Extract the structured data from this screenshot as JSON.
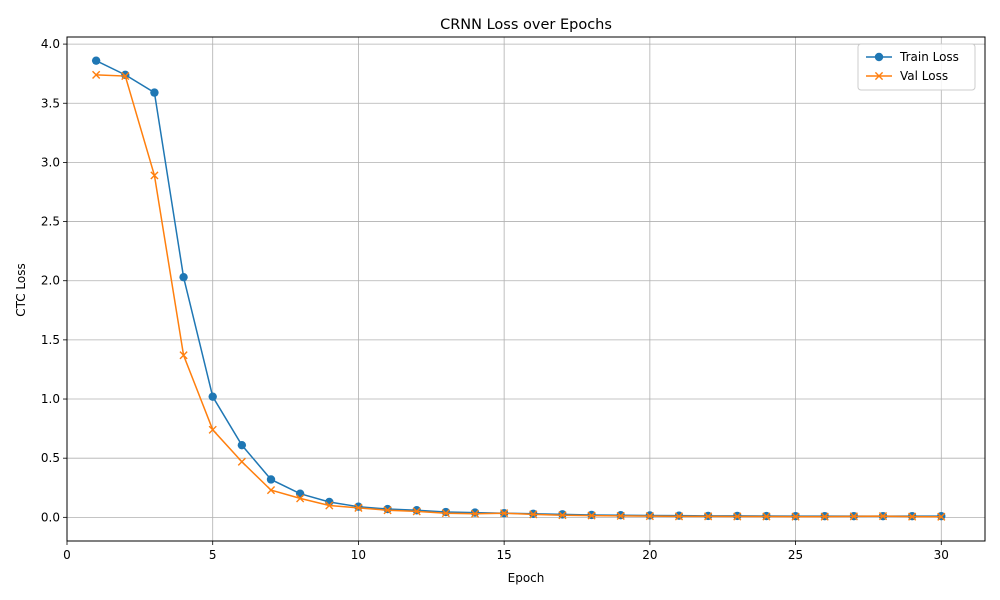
{
  "chart_data": {
    "type": "line",
    "title": "CRNN Loss over Epochs",
    "xlabel": "Epoch",
    "ylabel": "CTC Loss",
    "xlim": [
      0,
      31.5
    ],
    "ylim": [
      -0.2,
      4.06
    ],
    "xticks": [
      0,
      5,
      10,
      15,
      20,
      25,
      30
    ],
    "yticks": [
      0.0,
      0.5,
      1.0,
      1.5,
      2.0,
      2.5,
      3.0,
      3.5,
      4.0
    ],
    "ytick_labels": [
      "0.0",
      "0.5",
      "1.0",
      "1.5",
      "2.0",
      "2.5",
      "3.0",
      "3.5",
      "4.0"
    ],
    "grid": true,
    "legend_position": "top-right",
    "x": [
      1,
      2,
      3,
      4,
      5,
      6,
      7,
      8,
      9,
      10,
      11,
      12,
      13,
      14,
      15,
      16,
      17,
      18,
      19,
      20,
      21,
      22,
      23,
      24,
      25,
      26,
      27,
      28,
      29,
      30
    ],
    "series": [
      {
        "name": "Train Loss",
        "color": "#1f77b4",
        "marker": "circle",
        "values": [
          3.86,
          3.74,
          3.59,
          2.03,
          1.02,
          0.61,
          0.32,
          0.2,
          0.13,
          0.09,
          0.07,
          0.06,
          0.045,
          0.04,
          0.035,
          0.03,
          0.025,
          0.02,
          0.018,
          0.016,
          0.014,
          0.012,
          0.012,
          0.011,
          0.01,
          0.01,
          0.01,
          0.01,
          0.01,
          0.01
        ]
      },
      {
        "name": "Val Loss",
        "color": "#ff7f0e",
        "marker": "x",
        "values": [
          3.74,
          3.73,
          2.89,
          1.37,
          0.74,
          0.47,
          0.23,
          0.16,
          0.1,
          0.08,
          0.06,
          0.05,
          0.035,
          0.03,
          0.035,
          0.025,
          0.018,
          0.015,
          0.012,
          0.01,
          0.008,
          0.008,
          0.007,
          0.007,
          0.006,
          0.006,
          0.008,
          0.01,
          0.006,
          0.005
        ]
      }
    ]
  }
}
